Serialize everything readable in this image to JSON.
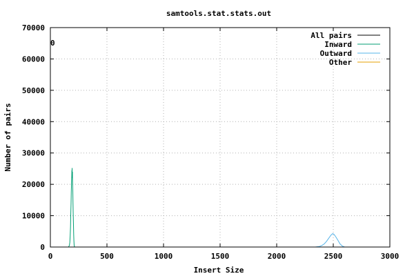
{
  "chart_data": {
    "type": "line",
    "title": "samtools.stat.stats.out",
    "xlabel": "Insert Size",
    "ylabel": "Number of pairs",
    "xlim": [
      0,
      3000
    ],
    "ylim": [
      0,
      70000
    ],
    "xticks": [
      "0",
      "500",
      "1000",
      "1500",
      "2000",
      "2500",
      "3000"
    ],
    "yticks": [
      "0",
      "10000",
      "20000",
      "30000",
      "40000",
      "50000",
      "60000",
      "70000"
    ],
    "grid": true,
    "legend_position": "top-right",
    "corner_label": "0",
    "series": [
      {
        "name": "All pairs",
        "color": "#000000",
        "points": [
          [
            180,
            0
          ],
          [
            185,
            0
          ]
        ]
      },
      {
        "name": "Inward",
        "color": "#009e73",
        "points": [
          [
            160,
            0
          ],
          [
            168,
            500
          ],
          [
            172,
            1500
          ],
          [
            175,
            3500
          ],
          [
            178,
            6500
          ],
          [
            180,
            10000
          ],
          [
            183,
            14000
          ],
          [
            185,
            17500
          ],
          [
            187,
            20500
          ],
          [
            189,
            22500
          ],
          [
            190,
            24500
          ],
          [
            191,
            22000
          ],
          [
            192,
            25200
          ],
          [
            193,
            23000
          ],
          [
            195,
            24000
          ],
          [
            196,
            21000
          ],
          [
            198,
            18000
          ],
          [
            200,
            14000
          ],
          [
            202,
            10500
          ],
          [
            204,
            7000
          ],
          [
            206,
            4000
          ],
          [
            208,
            2000
          ],
          [
            210,
            800
          ],
          [
            212,
            200
          ],
          [
            215,
            0
          ]
        ]
      },
      {
        "name": "Outward",
        "color": "#56b4e9",
        "points": [
          [
            2340,
            0
          ],
          [
            2380,
            200
          ],
          [
            2400,
            500
          ],
          [
            2420,
            1000
          ],
          [
            2440,
            1800
          ],
          [
            2460,
            2800
          ],
          [
            2480,
            3800
          ],
          [
            2495,
            4300
          ],
          [
            2505,
            4100
          ],
          [
            2520,
            3400
          ],
          [
            2540,
            2200
          ],
          [
            2560,
            1000
          ],
          [
            2580,
            300
          ],
          [
            2600,
            0
          ]
        ]
      },
      {
        "name": "Other",
        "color": "#e69f00",
        "points": []
      }
    ]
  }
}
